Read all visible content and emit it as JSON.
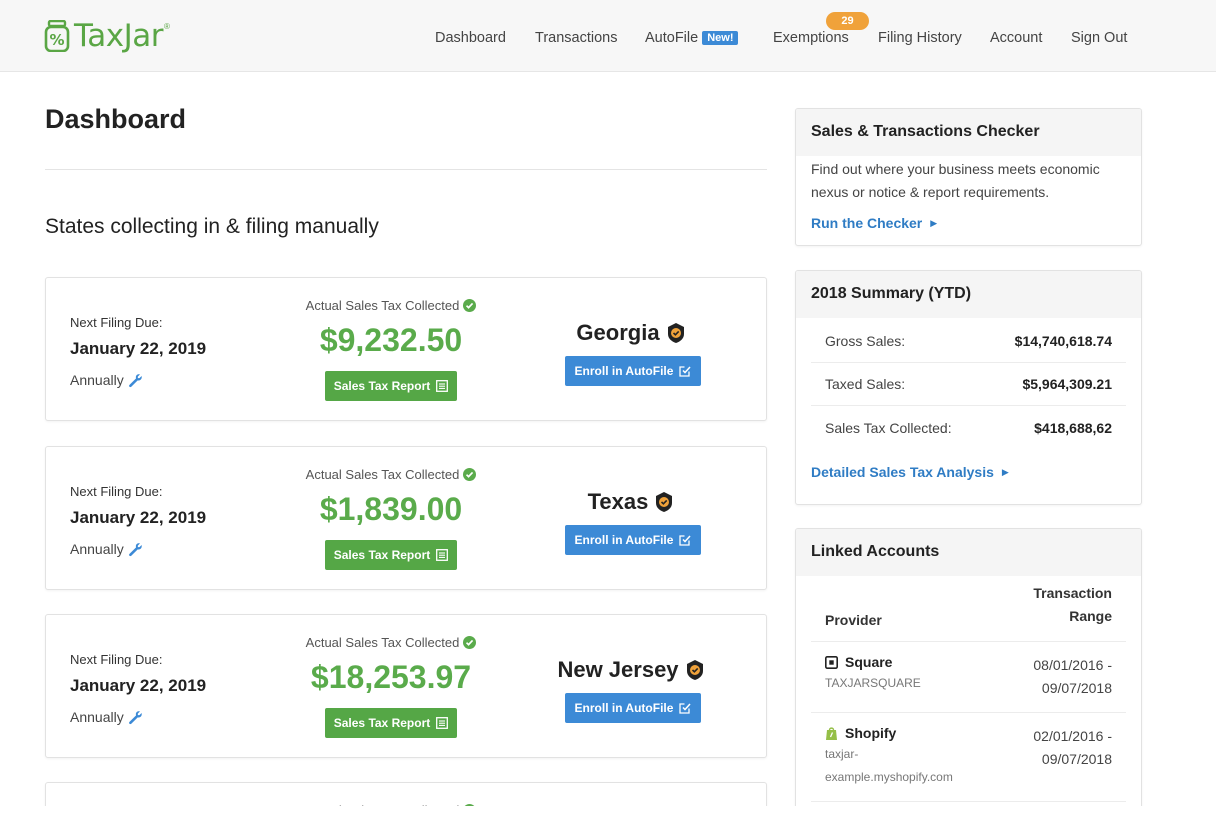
{
  "brand": {
    "name": "TaxJar",
    "tm": "®"
  },
  "nav": {
    "dashboard": "Dashboard",
    "transactions": "Transactions",
    "autofile": "AutoFile",
    "autofile_badge": "New!",
    "exemptions": "Exemptions",
    "exemptions_count": "29",
    "filing_history": "Filing History",
    "account": "Account",
    "sign_out": "Sign Out"
  },
  "main": {
    "title": "Dashboard",
    "section_title": "States collecting in & filing manually",
    "cards": [
      {
        "due_label": "Next Filing Due:",
        "due_date": "January 22, 2019",
        "period": "Annually",
        "collected_label": "Actual Sales Tax Collected",
        "amount": "$9,232.50",
        "report_button": "Sales Tax Report",
        "state": "Georgia",
        "enroll_button": "Enroll in AutoFile"
      },
      {
        "due_label": "Next Filing Due:",
        "due_date": "January 22, 2019",
        "period": "Annually",
        "collected_label": "Actual Sales Tax Collected",
        "amount": "$1,839.00",
        "report_button": "Sales Tax Report",
        "state": "Texas",
        "enroll_button": "Enroll in AutoFile"
      },
      {
        "due_label": "Next Filing Due:",
        "due_date": "January 22, 2019",
        "period": "Annually",
        "collected_label": "Actual Sales Tax Collected",
        "amount": "$18,253.97",
        "report_button": "Sales Tax Report",
        "state": "New Jersey",
        "enroll_button": "Enroll in AutoFile"
      },
      {
        "collected_label": "Actual Sales Tax Collected"
      }
    ]
  },
  "sidebar": {
    "checker": {
      "title": "Sales & Transactions Checker",
      "text": "Find out where your business meets economic nexus or notice & report requirements.",
      "link": "Run the Checker"
    },
    "summary": {
      "title": "2018 Summary (YTD)",
      "rows": [
        {
          "label": "Gross Sales:",
          "value": "$14,740,618.74"
        },
        {
          "label": "Taxed Sales:",
          "value": "$5,964,309.21"
        },
        {
          "label": "Sales Tax Collected:",
          "value": "$418,688,62"
        }
      ],
      "link": "Detailed Sales Tax Analysis"
    },
    "linked": {
      "title": "Linked Accounts",
      "col_provider": "Provider",
      "col_range_1": "Transaction",
      "col_range_2": "Range",
      "rows": [
        {
          "provider": "Square",
          "account": "TAXJARSQUARE",
          "range_start": "08/01/2016 -",
          "range_end": "09/07/2018"
        },
        {
          "provider": "Shopify",
          "account_1": "taxjar-",
          "account_2": "example.myshopify.com",
          "range_start": "02/01/2016 -",
          "range_end": "09/07/2018"
        }
      ]
    }
  },
  "colors": {
    "green": "#5aab4b",
    "blue": "#3c8ad6",
    "orange": "#f0a23a",
    "link": "#2f7cc4"
  }
}
